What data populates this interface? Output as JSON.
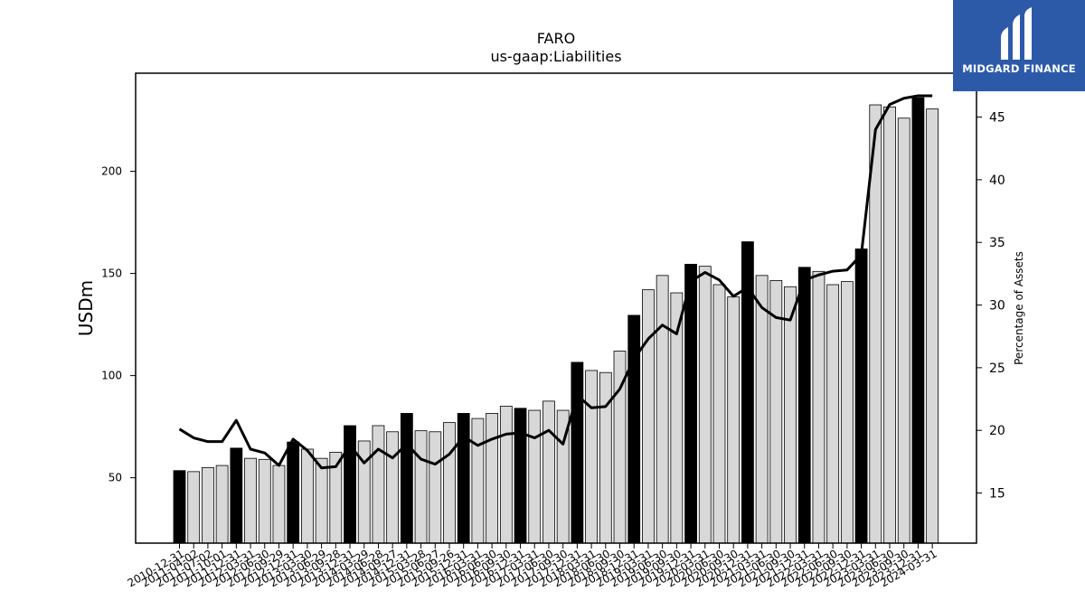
{
  "brand": {
    "name": "MIDGARD FINANCE",
    "color": "#2d5aa8"
  },
  "chart_data": {
    "type": "bar",
    "title": "FARO",
    "subtitle": "us-gaap:Liabilities",
    "ylabel": "USDm",
    "y2label": "Percentage of Assets",
    "ylim": [
      18,
      248
    ],
    "y2lim": [
      11,
      48.5
    ],
    "yticks": [
      50,
      100,
      150,
      200
    ],
    "y2ticks": [
      15,
      20,
      25,
      30,
      35,
      40,
      45
    ],
    "categories": [
      "2010-12-31",
      "2011-04-02",
      "2011-07-02",
      "2011-10-01",
      "2011-12-31",
      "2012-03-31",
      "2012-06-30",
      "2012-09-29",
      "2012-12-31",
      "2013-03-30",
      "2013-06-29",
      "2013-09-28",
      "2013-12-31",
      "2014-03-29",
      "2014-06-28",
      "2014-09-27",
      "2014-12-31",
      "2015-03-28",
      "2015-06-27",
      "2015-09-26",
      "2015-12-31",
      "2016-03-31",
      "2016-06-30",
      "2016-09-30",
      "2016-12-31",
      "2017-03-31",
      "2017-06-30",
      "2017-09-30",
      "2017-12-31",
      "2018-03-31",
      "2018-06-30",
      "2018-09-30",
      "2018-12-31",
      "2019-03-31",
      "2019-06-30",
      "2019-09-30",
      "2019-12-31",
      "2020-03-31",
      "2020-06-30",
      "2020-09-30",
      "2020-12-31",
      "2021-03-31",
      "2021-06-30",
      "2021-09-30",
      "2021-12-31",
      "2022-03-31",
      "2022-06-30",
      "2022-09-30",
      "2022-12-31",
      "2023-03-31",
      "2023-06-30",
      "2023-09-30",
      "2023-12-31",
      "2024-03-31"
    ],
    "series": [
      {
        "type": "bar",
        "axis": "left",
        "values": [
          53.5,
          53,
          55,
          56,
          64.5,
          59.5,
          59,
          56,
          67.5,
          64,
          59.5,
          62.5,
          75.5,
          68,
          75.5,
          72.5,
          81.5,
          73,
          72.5,
          77,
          81.5,
          79,
          81.5,
          85,
          84,
          83,
          87.5,
          83,
          106.5,
          102.5,
          101.5,
          112,
          129.5,
          142,
          149,
          140.5,
          154.5,
          153.5,
          144.5,
          138.5,
          165.5,
          149,
          146.5,
          143.5,
          153,
          151,
          144.5,
          146,
          162,
          232.5,
          231.5,
          226,
          236,
          230.5
        ],
        "year_end_highlight": [
          true,
          false,
          false,
          false,
          true,
          false,
          false,
          false,
          true,
          false,
          false,
          false,
          true,
          false,
          false,
          false,
          true,
          false,
          false,
          false,
          true,
          false,
          false,
          false,
          true,
          false,
          false,
          false,
          true,
          false,
          false,
          false,
          true,
          false,
          false,
          false,
          true,
          false,
          false,
          false,
          true,
          false,
          false,
          false,
          true,
          false,
          false,
          false,
          true,
          false,
          false,
          false,
          true,
          false
        ]
      },
      {
        "type": "line",
        "axis": "right",
        "values": [
          20.1,
          19.4,
          19.1,
          19.1,
          20.8,
          18.5,
          18.2,
          17.2,
          19.3,
          18.4,
          17.0,
          17.1,
          18.8,
          17.4,
          18.5,
          17.8,
          18.9,
          17.7,
          17.3,
          18.1,
          19.5,
          18.8,
          19.3,
          19.7,
          19.8,
          19.4,
          20.0,
          18.9,
          22.8,
          21.8,
          21.9,
          23.3,
          25.7,
          27.3,
          28.4,
          27.7,
          31.9,
          32.6,
          32.0,
          30.7,
          31.4,
          29.8,
          29.0,
          28.8,
          32.0,
          32.4,
          32.7,
          32.8,
          34.0,
          44.0,
          46.0,
          46.5,
          46.7,
          46.7
        ]
      }
    ],
    "colors": {
      "bar_highlight": "#000000",
      "bar": "#d8d8d8",
      "line": "#000000"
    },
    "grid": false,
    "legend": "none"
  }
}
